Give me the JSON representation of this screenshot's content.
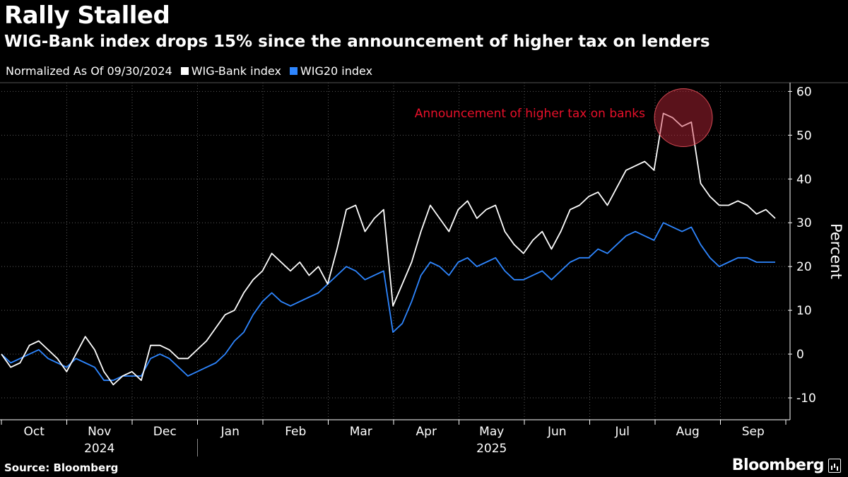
{
  "header": {
    "title": "Rally Stalled",
    "subtitle": "WIG-Bank index drops 15% since the announcement of higher tax on lenders"
  },
  "legend": {
    "note": "Normalized As Of 09/30/2024",
    "items": [
      {
        "label": "WIG-Bank index",
        "color": "#ffffff"
      },
      {
        "label": "WIG20 index",
        "color": "#2e86ff"
      }
    ]
  },
  "footer": {
    "source": "Source: Bloomberg",
    "brand": "Bloomberg"
  },
  "chart_data": {
    "type": "line",
    "title": "Rally Stalled",
    "ylabel": "Percent",
    "ylim": [
      -15,
      62
    ],
    "yticks": [
      -10,
      0,
      10,
      20,
      30,
      40,
      50,
      60
    ],
    "months": [
      "Oct",
      "Nov",
      "Dec",
      "Jan",
      "Feb",
      "Mar",
      "Apr",
      "May",
      "Jun",
      "Jul",
      "Aug",
      "Sep"
    ],
    "years": [
      "2024",
      "2025"
    ],
    "annotation": {
      "text": "Announcement of higher tax on banks",
      "color": "#e8102a"
    },
    "series": [
      {
        "name": "WIG-Bank index",
        "color": "#ffffff",
        "values": [
          0,
          -3,
          -2,
          2,
          3,
          1,
          -1,
          -4,
          0,
          4,
          1,
          -4,
          -7,
          -5,
          -4,
          -6,
          2,
          2,
          1,
          -1,
          -1,
          1,
          3,
          6,
          9,
          10,
          14,
          17,
          19,
          23,
          21,
          19,
          21,
          18,
          20,
          16,
          24,
          33,
          34,
          28,
          31,
          33,
          11,
          16,
          21,
          28,
          34,
          31,
          28,
          33,
          35,
          31,
          33,
          34,
          28,
          25,
          23,
          26,
          28,
          24,
          28,
          33,
          34,
          36,
          37,
          34,
          38,
          42,
          43,
          44,
          42,
          55,
          54,
          52,
          53,
          39,
          36,
          34,
          34,
          35,
          34,
          32,
          33,
          31
        ]
      },
      {
        "name": "WIG20 index",
        "color": "#2e86ff",
        "values": [
          0,
          -2,
          -1,
          0,
          1,
          -1,
          -2,
          -3,
          -1,
          -2,
          -3,
          -6,
          -6,
          -5,
          -5,
          -5,
          -1,
          0,
          -1,
          -3,
          -5,
          -4,
          -3,
          -2,
          0,
          3,
          5,
          9,
          12,
          14,
          12,
          11,
          12,
          13,
          14,
          16,
          18,
          20,
          19,
          17,
          18,
          19,
          5,
          7,
          12,
          18,
          21,
          20,
          18,
          21,
          22,
          20,
          21,
          22,
          19,
          17,
          17,
          18,
          19,
          17,
          19,
          21,
          22,
          22,
          24,
          23,
          25,
          27,
          28,
          27,
          26,
          30,
          29,
          28,
          29,
          25,
          22,
          20,
          21,
          22,
          22,
          21,
          21,
          21
        ]
      }
    ]
  }
}
